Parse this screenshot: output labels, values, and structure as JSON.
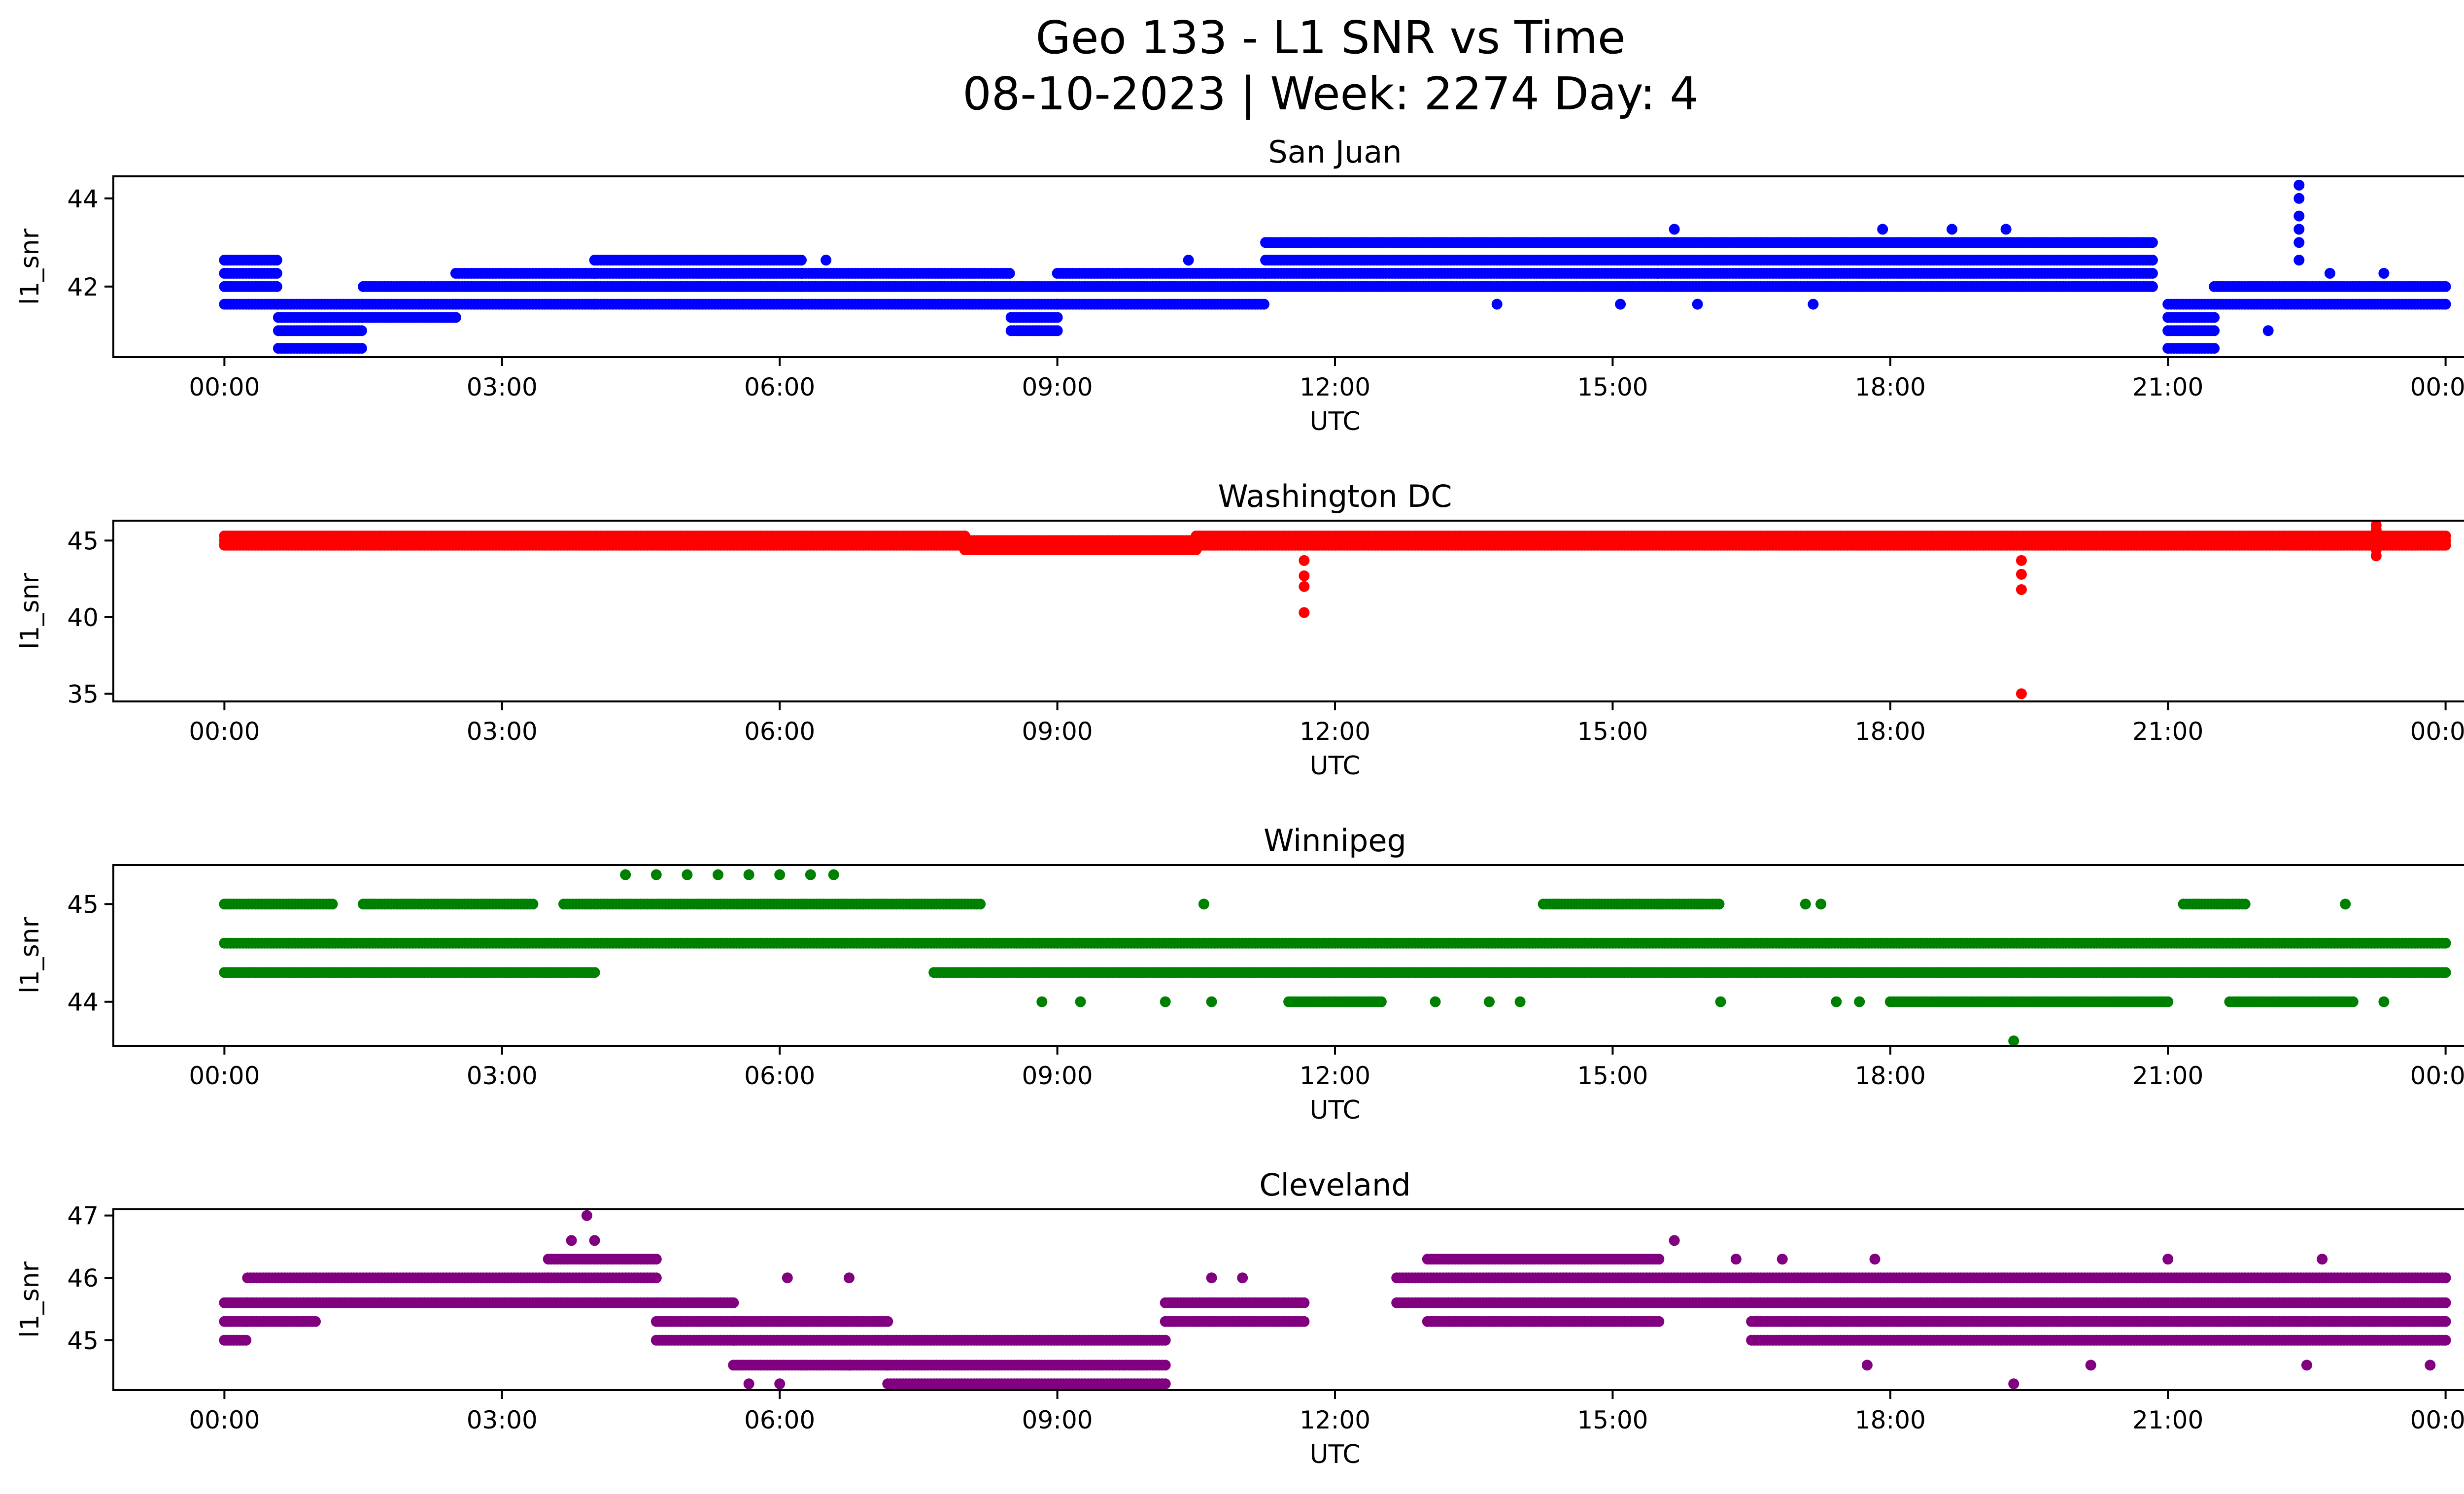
{
  "figure": {
    "title_line1": "Geo 133 - L1 SNR vs Time",
    "title_line2": "08-10-2023 | Week: 2274 Day: 4"
  },
  "chart_data": [
    {
      "type": "scatter",
      "title": "San Juan",
      "xlabel": "UTC",
      "ylabel": "l1_snr",
      "color": "#0000ff",
      "xlim": [
        "00:00",
        "24:00"
      ],
      "xticks": [
        "00:00",
        "03:00",
        "06:00",
        "09:00",
        "12:00",
        "15:00",
        "18:00",
        "21:00",
        "00:00"
      ],
      "ylim": [
        40.4,
        44.5
      ],
      "yticks": [
        42,
        44
      ],
      "series": [
        {
          "segments": [
            {
              "start": "00:00",
              "end": "00:35",
              "values": [
                41.6,
                42.0,
                42.3,
                42.6
              ]
            },
            {
              "start": "00:35",
              "end": "01:30",
              "values": [
                40.6,
                41.0,
                41.3,
                41.6
              ]
            },
            {
              "start": "01:30",
              "end": "02:30",
              "values": [
                41.3,
                41.6,
                42.0
              ]
            },
            {
              "start": "02:30",
              "end": "04:00",
              "values": [
                41.6,
                42.0,
                42.3
              ]
            },
            {
              "start": "04:00",
              "end": "06:15",
              "values": [
                41.6,
                42.0,
                42.3,
                42.6
              ]
            },
            {
              "start": "06:15",
              "end": "08:30",
              "values": [
                41.6,
                42.0,
                42.3
              ]
            },
            {
              "start": "08:30",
              "end": "09:00",
              "values": [
                41.0,
                41.3,
                41.6,
                42.0
              ]
            },
            {
              "start": "09:00",
              "end": "11:15",
              "values": [
                41.6,
                42.0,
                42.3
              ]
            },
            {
              "start": "11:15",
              "end": "15:30",
              "values": [
                42.0,
                42.3,
                42.6,
                43.0
              ]
            },
            {
              "start": "15:30",
              "end": "20:50",
              "values": [
                42.0,
                42.3,
                42.6,
                43.0
              ]
            },
            {
              "start": "21:00",
              "end": "21:30",
              "values": [
                40.6,
                41.0,
                41.3,
                41.6
              ]
            },
            {
              "start": "21:30",
              "end": "24:00",
              "values": [
                41.6,
                42.0
              ]
            }
          ],
          "points": [
            {
              "x": "22:25",
              "y": 44.3
            },
            {
              "x": "22:25",
              "y": 44.0
            },
            {
              "x": "22:25",
              "y": 43.6
            },
            {
              "x": "22:25",
              "y": 43.3
            },
            {
              "x": "22:25",
              "y": 43.0
            },
            {
              "x": "22:25",
              "y": 42.6
            },
            {
              "x": "15:40",
              "y": 43.3
            },
            {
              "x": "17:55",
              "y": 43.3
            },
            {
              "x": "18:40",
              "y": 43.3
            },
            {
              "x": "19:15",
              "y": 43.3
            },
            {
              "x": "11:55",
              "y": 43.0
            },
            {
              "x": "04:10",
              "y": 42.6
            },
            {
              "x": "06:30",
              "y": 42.6
            },
            {
              "x": "10:25",
              "y": 42.6
            },
            {
              "x": "13:45",
              "y": 41.6
            },
            {
              "x": "15:05",
              "y": 41.6
            },
            {
              "x": "15:55",
              "y": 41.6
            },
            {
              "x": "17:10",
              "y": 41.6
            },
            {
              "x": "22:45",
              "y": 42.3
            },
            {
              "x": "23:20",
              "y": 42.3
            },
            {
              "x": "22:05",
              "y": 41.0
            }
          ]
        }
      ]
    },
    {
      "type": "scatter",
      "title": "Washington DC",
      "xlabel": "UTC",
      "ylabel": "l1_snr",
      "color": "#ff0000",
      "xlim": [
        "00:00",
        "24:00"
      ],
      "xticks": [
        "00:00",
        "03:00",
        "06:00",
        "09:00",
        "12:00",
        "15:00",
        "18:00",
        "21:00",
        "00:00"
      ],
      "ylim": [
        34.5,
        46.3
      ],
      "yticks": [
        35,
        40,
        45
      ],
      "series": [
        {
          "segments": [
            {
              "start": "00:00",
              "end": "08:00",
              "values": [
                44.7,
                45.0,
                45.3
              ]
            },
            {
              "start": "08:00",
              "end": "10:30",
              "values": [
                44.4,
                44.7,
                45.0
              ]
            },
            {
              "start": "10:30",
              "end": "24:00",
              "values": [
                44.7,
                45.0,
                45.3
              ]
            }
          ],
          "points": [
            {
              "x": "11:40",
              "y": 43.7
            },
            {
              "x": "11:40",
              "y": 42.7
            },
            {
              "x": "11:40",
              "y": 42.0
            },
            {
              "x": "11:40",
              "y": 40.3
            },
            {
              "x": "19:25",
              "y": 43.7
            },
            {
              "x": "19:25",
              "y": 42.8
            },
            {
              "x": "19:25",
              "y": 41.8
            },
            {
              "x": "19:25",
              "y": 35.0
            },
            {
              "x": "23:15",
              "y": 46.0
            },
            {
              "x": "23:15",
              "y": 44.0
            },
            {
              "x": "23:15",
              "y": 45.7
            },
            {
              "x": "23:15",
              "y": 44.4
            }
          ]
        }
      ]
    },
    {
      "type": "scatter",
      "title": "Winnipeg",
      "xlabel": "UTC",
      "ylabel": "l1_snr",
      "color": "#008000",
      "xlim": [
        "00:00",
        "24:00"
      ],
      "xticks": [
        "00:00",
        "03:00",
        "06:00",
        "09:00",
        "12:00",
        "15:00",
        "18:00",
        "21:00",
        "00:00"
      ],
      "ylim": [
        43.55,
        45.4
      ],
      "yticks": [
        44,
        45
      ],
      "series": [
        {
          "segments": [
            {
              "start": "00:00",
              "end": "24:00",
              "values": [
                44.6
              ]
            },
            {
              "start": "00:00",
              "end": "04:00",
              "values": [
                44.3
              ]
            },
            {
              "start": "07:40",
              "end": "24:00",
              "values": [
                44.3
              ]
            },
            {
              "start": "00:00",
              "end": "01:10",
              "values": [
                45.0
              ]
            },
            {
              "start": "01:30",
              "end": "03:20",
              "values": [
                45.0
              ]
            },
            {
              "start": "03:40",
              "end": "08:10",
              "values": [
                45.0
              ]
            },
            {
              "start": "14:15",
              "end": "16:10",
              "values": [
                45.0
              ]
            },
            {
              "start": "21:10",
              "end": "21:50",
              "values": [
                45.0
              ]
            },
            {
              "start": "11:30",
              "end": "12:30",
              "values": [
                44.0
              ]
            },
            {
              "start": "18:00",
              "end": "21:00",
              "values": [
                44.0
              ]
            },
            {
              "start": "21:40",
              "end": "23:00",
              "values": [
                44.0
              ]
            }
          ],
          "points": [
            {
              "x": "04:20",
              "y": 45.3
            },
            {
              "x": "04:40",
              "y": 45.3
            },
            {
              "x": "05:00",
              "y": 45.3
            },
            {
              "x": "05:20",
              "y": 45.3
            },
            {
              "x": "05:40",
              "y": 45.3
            },
            {
              "x": "06:00",
              "y": 45.3
            },
            {
              "x": "06:20",
              "y": 45.3
            },
            {
              "x": "06:35",
              "y": 45.3
            },
            {
              "x": "10:35",
              "y": 45.0
            },
            {
              "x": "17:05",
              "y": 45.0
            },
            {
              "x": "17:15",
              "y": 45.0
            },
            {
              "x": "22:55",
              "y": 45.0
            },
            {
              "x": "08:50",
              "y": 44.0
            },
            {
              "x": "09:15",
              "y": 44.0
            },
            {
              "x": "10:10",
              "y": 44.0
            },
            {
              "x": "10:40",
              "y": 44.0
            },
            {
              "x": "13:05",
              "y": 44.0
            },
            {
              "x": "13:40",
              "y": 44.0
            },
            {
              "x": "14:00",
              "y": 44.0
            },
            {
              "x": "16:10",
              "y": 44.0
            },
            {
              "x": "17:25",
              "y": 44.0
            },
            {
              "x": "17:40",
              "y": 44.0
            },
            {
              "x": "23:20",
              "y": 44.0
            },
            {
              "x": "19:20",
              "y": 43.6
            }
          ]
        }
      ]
    },
    {
      "type": "scatter",
      "title": "Cleveland",
      "xlabel": "UTC",
      "ylabel": "l1_snr",
      "color": "#800080",
      "xlim": [
        "00:00",
        "24:00"
      ],
      "xticks": [
        "00:00",
        "03:00",
        "06:00",
        "09:00",
        "12:00",
        "15:00",
        "18:00",
        "21:00",
        "00:00"
      ],
      "ylim": [
        44.2,
        47.1
      ],
      "yticks": [
        45,
        46,
        47
      ],
      "series": [
        {
          "segments": [
            {
              "start": "00:00",
              "end": "00:15",
              "values": [
                45.0,
                45.3,
                45.6
              ]
            },
            {
              "start": "00:15",
              "end": "01:00",
              "values": [
                45.3,
                45.6,
                46.0
              ]
            },
            {
              "start": "01:00",
              "end": "03:30",
              "values": [
                45.6,
                46.0
              ]
            },
            {
              "start": "03:30",
              "end": "04:40",
              "values": [
                45.6,
                46.0,
                46.3
              ]
            },
            {
              "start": "04:40",
              "end": "05:30",
              "values": [
                45.0,
                45.3,
                45.6
              ]
            },
            {
              "start": "05:30",
              "end": "07:10",
              "values": [
                44.6,
                45.0,
                45.3
              ]
            },
            {
              "start": "07:10",
              "end": "10:10",
              "values": [
                44.3,
                44.6,
                45.0
              ]
            },
            {
              "start": "10:10",
              "end": "11:40",
              "values": [
                45.3,
                45.6
              ]
            },
            {
              "start": "12:40",
              "end": "16:30",
              "values": [
                45.6,
                46.0
              ]
            },
            {
              "start": "13:00",
              "end": "15:30",
              "values": [
                45.3,
                46.3
              ]
            },
            {
              "start": "16:30",
              "end": "24:00",
              "values": [
                45.0,
                45.3,
                45.6,
                46.0
              ]
            }
          ],
          "points": [
            {
              "x": "03:55",
              "y": 47.0
            },
            {
              "x": "03:45",
              "y": 46.6
            },
            {
              "x": "04:00",
              "y": 46.6
            },
            {
              "x": "15:40",
              "y": 46.6
            },
            {
              "x": "06:05",
              "y": 46.0
            },
            {
              "x": "06:45",
              "y": 46.0
            },
            {
              "x": "10:40",
              "y": 46.0
            },
            {
              "x": "11:00",
              "y": 46.0
            },
            {
              "x": "16:20",
              "y": 46.3
            },
            {
              "x": "16:50",
              "y": 46.3
            },
            {
              "x": "17:50",
              "y": 46.3
            },
            {
              "x": "21:00",
              "y": 46.3
            },
            {
              "x": "22:40",
              "y": 46.3
            },
            {
              "x": "05:40",
              "y": 44.3
            },
            {
              "x": "06:00",
              "y": 44.3
            },
            {
              "x": "17:45",
              "y": 44.6
            },
            {
              "x": "19:20",
              "y": 44.3
            },
            {
              "x": "20:10",
              "y": 44.6
            },
            {
              "x": "22:30",
              "y": 44.6
            },
            {
              "x": "23:50",
              "y": 44.6
            },
            {
              "x": "06:45",
              "y": 44.6
            }
          ]
        }
      ]
    }
  ]
}
